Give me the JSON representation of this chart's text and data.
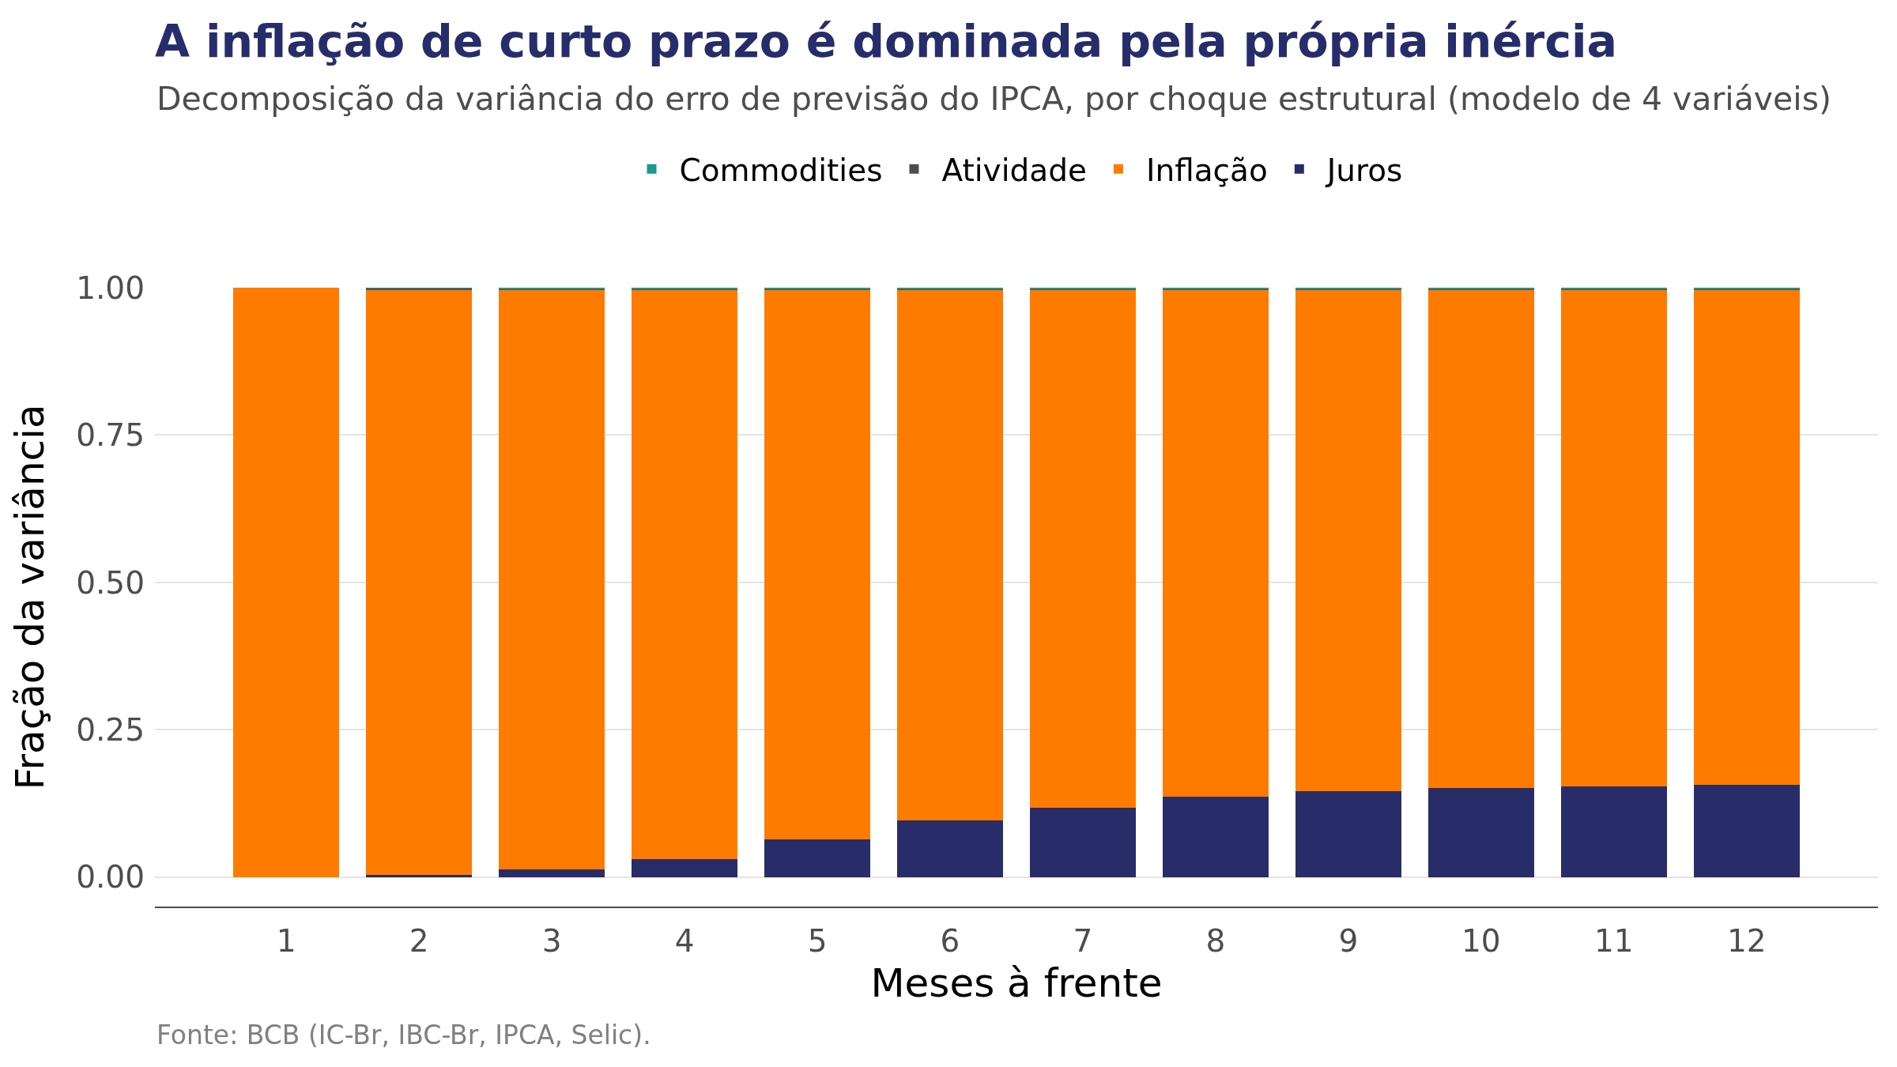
{
  "chart_data": {
    "type": "bar",
    "title": "A inflação de curto prazo é dominada pela própria inércia",
    "subtitle": "Decomposição da variância do erro de previsão do IPCA, por choque estrutural (modelo de 4 variáveis)",
    "xlabel": "Meses à frente",
    "ylabel": "Fração da variância",
    "annotations": [
      "Fonte: BCB (IC-Br, IBC-Br, IPCA, Selic)."
    ],
    "x": [
      1,
      2,
      3,
      4,
      5,
      6,
      7,
      8,
      9,
      10,
      11,
      12
    ],
    "xlim": [
      0.01,
      12.99
    ],
    "xticks": [
      1,
      2,
      3,
      4,
      5,
      6,
      7,
      8,
      9,
      10,
      11,
      12
    ],
    "ylim": [
      -0.05,
      1
    ],
    "yticks": [
      {
        "value": 0,
        "label": "0.00"
      },
      {
        "value": 0.25,
        "label": "0.25"
      },
      {
        "value": 0.5,
        "label": "0.50"
      },
      {
        "value": 0.75,
        "label": "0.75"
      },
      {
        "value": 1,
        "label": "1.00"
      }
    ],
    "stacked": true,
    "grid": "y",
    "legend": "top",
    "series": [
      {
        "name": "Juros",
        "color": "#282d69",
        "values": [
          0,
          0.004,
          0.013,
          0.031,
          0.064,
          0.096,
          0.118,
          0.136,
          0.146,
          0.151,
          0.154,
          0.156
        ]
      },
      {
        "name": "Inflação",
        "color": "#ff7b00",
        "values": [
          1,
          0.993,
          0.984,
          0.966,
          0.933,
          0.901,
          0.879,
          0.861,
          0.851,
          0.846,
          0.843,
          0.841
        ]
      },
      {
        "name": "Atividade",
        "color": "#4d4d4d",
        "values": [
          0,
          0.002,
          0.001,
          0.001,
          0.001,
          0.001,
          0.001,
          0.001,
          0.001,
          0.001,
          0.001,
          0.001
        ]
      },
      {
        "name": "Commodities",
        "color": "#1b998b",
        "values": [
          0,
          0.001,
          0.002,
          0.002,
          0.002,
          0.002,
          0.002,
          0.002,
          0.002,
          0.002,
          0.002,
          0.002
        ]
      }
    ]
  }
}
